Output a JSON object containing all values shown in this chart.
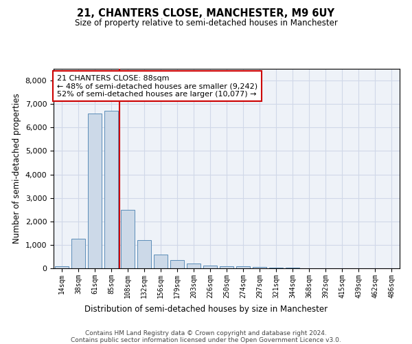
{
  "title1": "21, CHANTERS CLOSE, MANCHESTER, M9 6UY",
  "title2": "Size of property relative to semi-detached houses in Manchester",
  "xlabel": "Distribution of semi-detached houses by size in Manchester",
  "ylabel": "Number of semi-detached properties",
  "property_label": "21 CHANTERS CLOSE: 88sqm",
  "pct_smaller": 48,
  "pct_larger": 52,
  "count_smaller": 9242,
  "count_larger": 10077,
  "categories": [
    "14sqm",
    "38sqm",
    "61sqm",
    "85sqm",
    "108sqm",
    "132sqm",
    "156sqm",
    "179sqm",
    "203sqm",
    "226sqm",
    "250sqm",
    "274sqm",
    "297sqm",
    "321sqm",
    "344sqm",
    "368sqm",
    "392sqm",
    "415sqm",
    "439sqm",
    "462sqm",
    "486sqm"
  ],
  "values": [
    75,
    1250,
    6600,
    6700,
    2500,
    1200,
    575,
    350,
    200,
    130,
    100,
    80,
    60,
    40,
    20,
    10,
    5,
    3,
    2,
    1,
    1
  ],
  "bar_color": "#ccd9e8",
  "bar_edge_color": "#5b8db8",
  "vline_color": "#cc0000",
  "vline_position": 3.5,
  "box_color": "#cc0000",
  "annotation_fontsize": 8.0,
  "footer": "Contains HM Land Registry data © Crown copyright and database right 2024.\nContains public sector information licensed under the Open Government Licence v3.0.",
  "ylim": [
    0,
    8500
  ],
  "yticks": [
    0,
    1000,
    2000,
    3000,
    4000,
    5000,
    6000,
    7000,
    8000
  ],
  "grid_color": "#d0d8e8",
  "background_color": "#eef2f8"
}
